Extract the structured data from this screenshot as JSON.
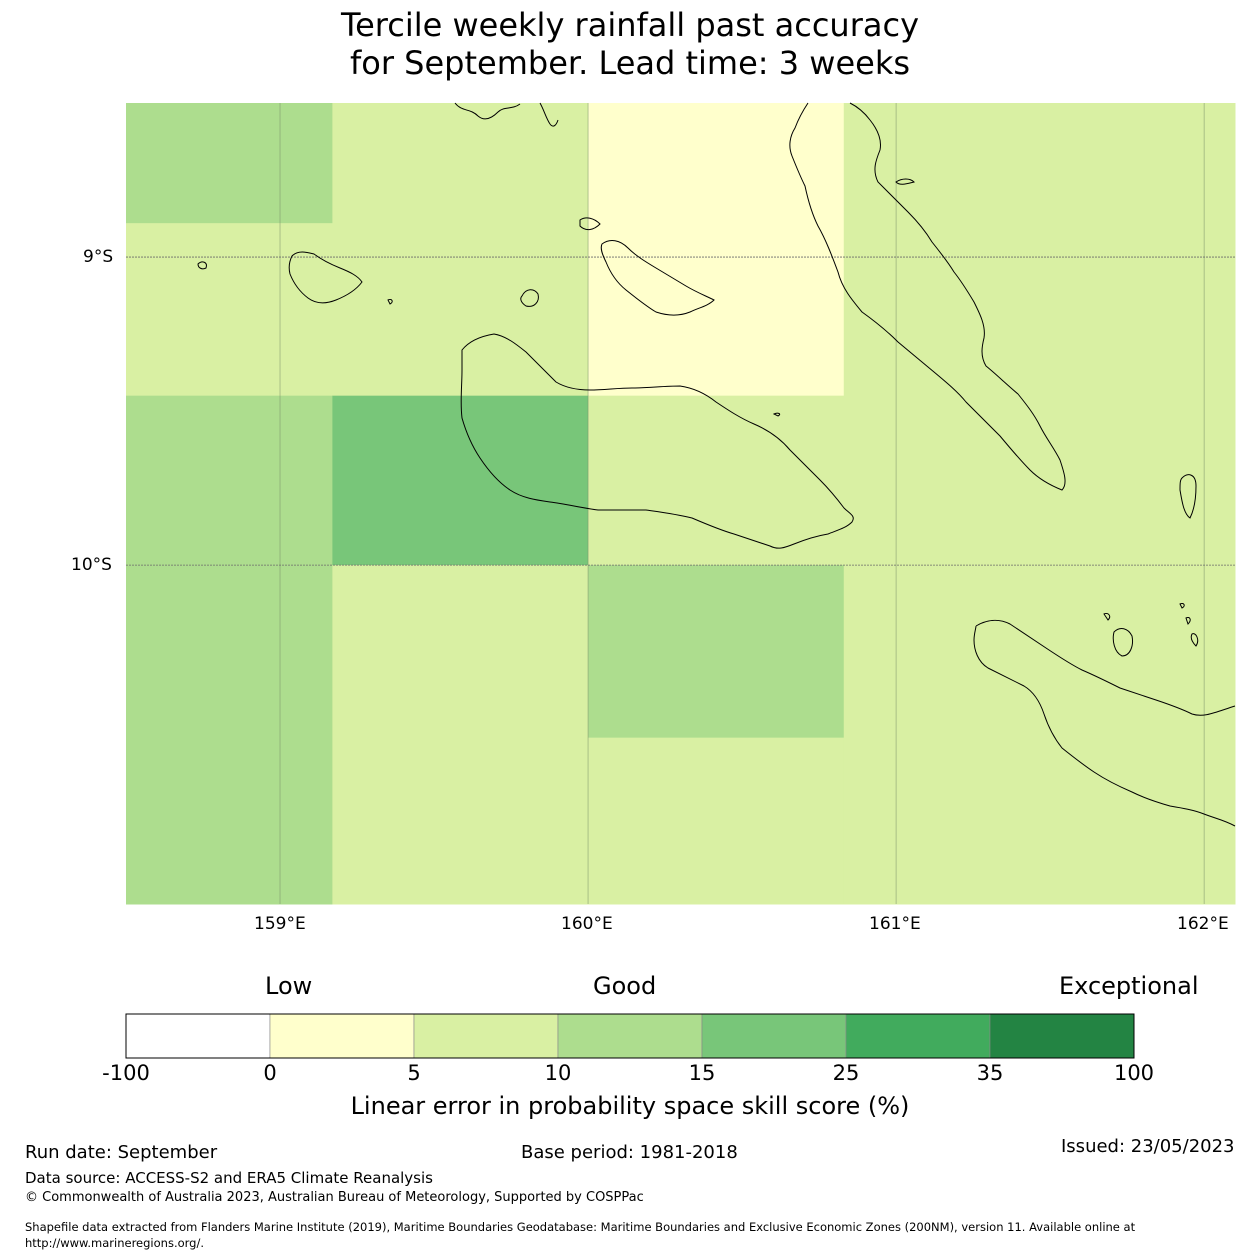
{
  "title": {
    "line1": "Tercile weekly rainfall past accuracy",
    "line2": "for September. Lead time: 3 weeks"
  },
  "map": {
    "lat_labels": [
      "9°S",
      "10°S"
    ],
    "lon_labels": [
      "159°E",
      "160°E",
      "161°E",
      "162°E"
    ],
    "extent": {
      "lon_min": 158.5,
      "lon_max": 162.1,
      "lat_max": -8.5,
      "lat_min": -11.1
    },
    "grid_cells": [
      {
        "lon": [
          158.5,
          159.17
        ],
        "lat": [
          -8.5,
          -8.89
        ],
        "value_class": 3
      },
      {
        "lon": [
          159.17,
          160.0
        ],
        "lat": [
          -8.5,
          -8.89
        ],
        "value_class": 2
      },
      {
        "lon": [
          158.5,
          160.0
        ],
        "lat": [
          -8.89,
          -9.45
        ],
        "value_class": 2
      },
      {
        "lon": [
          160.0,
          160.83
        ],
        "lat": [
          -8.5,
          -9.45
        ],
        "value_class": 1
      },
      {
        "lon": [
          160.83,
          162.1
        ],
        "lat": [
          -8.5,
          -10.0
        ],
        "value_class": 2
      },
      {
        "lon": [
          158.5,
          159.17
        ],
        "lat": [
          -9.45,
          -11.1
        ],
        "value_class": 3
      },
      {
        "lon": [
          159.17,
          160.0
        ],
        "lat": [
          -9.45,
          -10.0
        ],
        "value_class": 4
      },
      {
        "lon": [
          160.0,
          160.83
        ],
        "lat": [
          -9.45,
          -10.0
        ],
        "value_class": 2
      },
      {
        "lon": [
          159.17,
          160.0
        ],
        "lat": [
          -10.0,
          -11.1
        ],
        "value_class": 2
      },
      {
        "lon": [
          160.0,
          160.83
        ],
        "lat": [
          -10.0,
          -10.56
        ],
        "value_class": 3
      },
      {
        "lon": [
          160.0,
          160.83
        ],
        "lat": [
          -10.56,
          -11.1
        ],
        "value_class": 2
      },
      {
        "lon": [
          160.83,
          162.1
        ],
        "lat": [
          -10.0,
          -11.1
        ],
        "value_class": 2
      }
    ]
  },
  "colorbar": {
    "quality_labels": {
      "low": "Low",
      "good": "Good",
      "exceptional": "Exceptional"
    },
    "colors": [
      "#ffffff",
      "#ffffcc",
      "#d9f0a3",
      "#addd8e",
      "#78c679",
      "#41ab5d",
      "#238443"
    ],
    "ticks": [
      "-100",
      "0",
      "5",
      "10",
      "15",
      "25",
      "35",
      "100"
    ],
    "label": "Linear error in probability space skill score (%)"
  },
  "footer": {
    "run_date": "Run date: September",
    "base_period": "Base period: 1981-2018",
    "issued": "Issued: 23/05/2023",
    "data_source": "Data source: ACCESS-S2 and ERA5 Climate Reanalysis",
    "copyright": "© Commonwealth of Australia 2023, Australian Bureau of Meteorology, Supported by COSPPac",
    "shapefile_line1": "Shapefile data extracted from Flanders Marine Institute (2019), Maritime Boundaries Geodatabase: Maritime Boundaries and Exclusive Economic Zones (200NM), version 11. Available online at",
    "shapefile_line2": "http://www.marineregions.org/."
  }
}
